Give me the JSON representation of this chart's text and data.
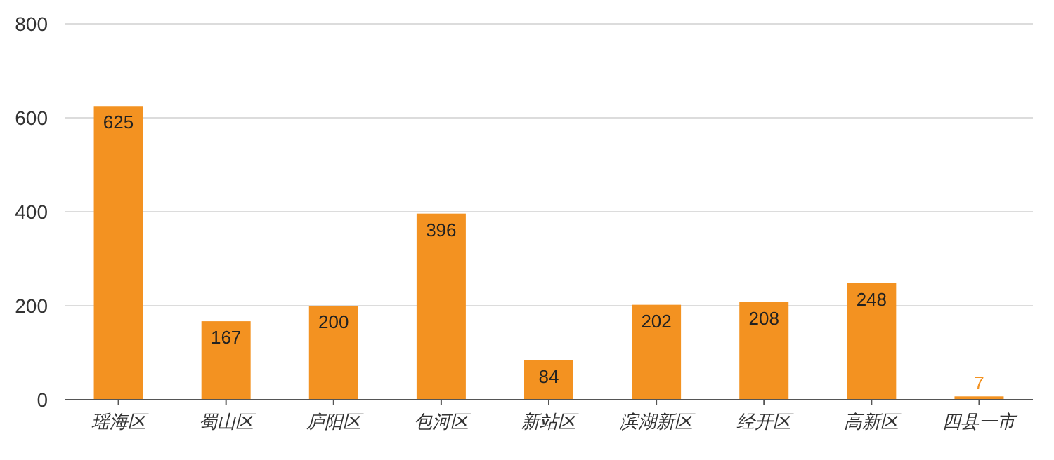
{
  "chart_data": {
    "type": "bar",
    "categories": [
      "瑶海区",
      "蜀山区",
      "庐阳区",
      "包河区",
      "新站区",
      "滨湖新区",
      "经开区",
      "高新区",
      "四县一市"
    ],
    "values": [
      625,
      167,
      200,
      396,
      84,
      202,
      208,
      248,
      7
    ],
    "color": "#f39221",
    "ylim": [
      0,
      800
    ],
    "yticks": [
      0,
      200,
      400,
      600,
      800
    ],
    "grid": "y",
    "data_labels": true
  }
}
